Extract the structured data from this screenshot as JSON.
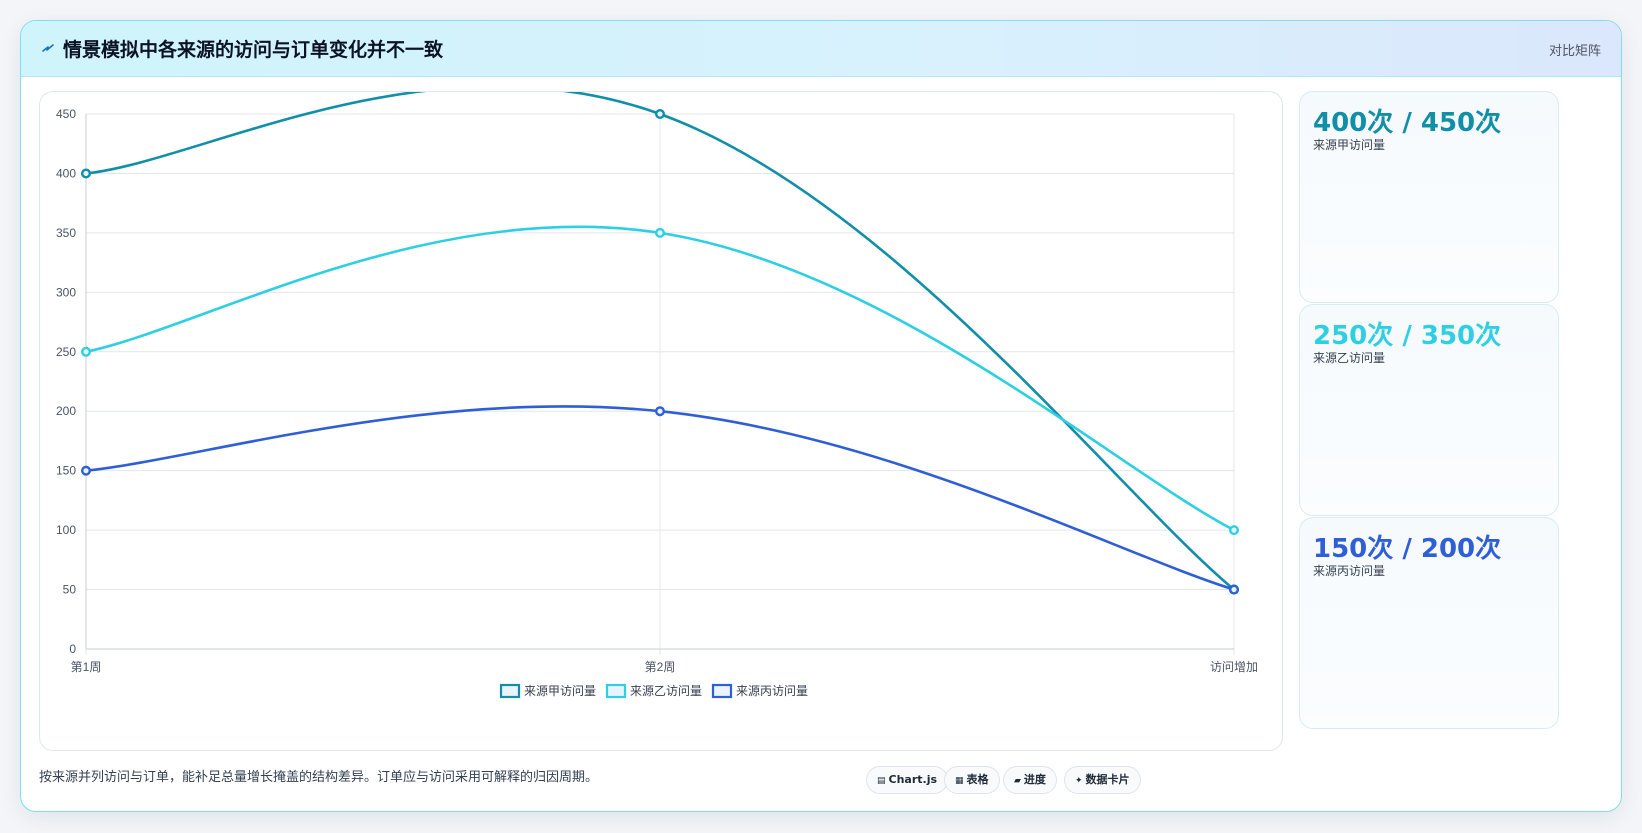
{
  "header": {
    "title": "情景模拟中各来源的访问与订单变化并不一致",
    "right_label": "对比矩阵",
    "icon": "lightning-icon"
  },
  "kpis": [
    {
      "value": "400次 / 450次",
      "label": "来源甲访问量",
      "color": "#118ea8"
    },
    {
      "value": "250次 / 350次",
      "label": "来源乙访问量",
      "color": "#2fcfe3"
    },
    {
      "value": "150次 / 200次",
      "label": "来源丙访问量",
      "color": "#2f5fd6"
    }
  ],
  "footer": {
    "note": "按来源并列访问与订单，能补足总量增长掩盖的结构差异。订单应与访问采用可解释的归因周期。",
    "chips": [
      {
        "icon": "▤",
        "label": "Chart.js"
      },
      {
        "icon": "▦",
        "label": "表格"
      },
      {
        "icon": "▰",
        "label": "进度"
      },
      {
        "icon": "✦",
        "label": "数据卡片"
      }
    ]
  },
  "chart_data": {
    "type": "line",
    "categories": [
      "第1周",
      "第2周",
      "访问增加"
    ],
    "series": [
      {
        "name": "来源甲访问量",
        "values": [
          400,
          450,
          50
        ],
        "color": "#118ea8"
      },
      {
        "name": "来源乙访问量",
        "values": [
          250,
          350,
          100
        ],
        "color": "#2fcfe3"
      },
      {
        "name": "来源丙访问量",
        "values": [
          150,
          200,
          50
        ],
        "color": "#2f5fd6"
      }
    ],
    "ylim": [
      0,
      450
    ],
    "yticks": [
      0,
      50,
      100,
      150,
      200,
      250,
      300,
      350,
      400,
      450
    ],
    "grid": true,
    "legend": "bottom"
  }
}
